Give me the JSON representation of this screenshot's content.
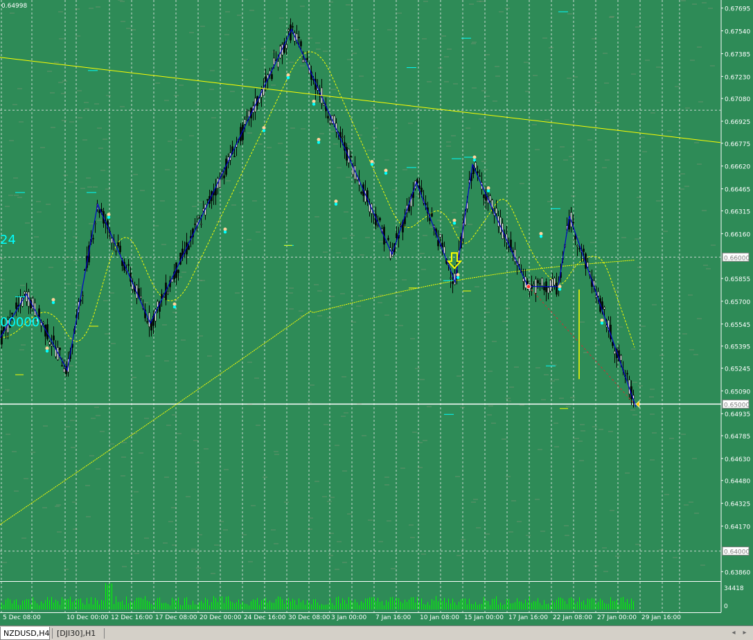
{
  "chart_data": {
    "type": "candlestick",
    "symbol": "NZDUSD",
    "timeframe": "H4",
    "title": "",
    "price_axis": {
      "range": [
        0.638,
        0.6775
      ],
      "ticks": [
        "0.67695",
        "0.67540",
        "0.67385",
        "0.67230",
        "0.67080",
        "0.66925",
        "0.66775",
        "0.66620",
        "0.66465",
        "0.66315",
        "0.66160",
        "0.66000",
        "0.65855",
        "0.65700",
        "0.65545",
        "0.65395",
        "0.65245",
        "0.65090",
        "0.65000",
        "0.64935",
        "0.64785",
        "0.64630",
        "0.64480",
        "0.64325",
        "0.64170",
        "0.64000",
        "0.63860"
      ],
      "boxed_levels": [
        "0.67000",
        "0.66000",
        "0.65000",
        "0.64000"
      ],
      "corner_label": "0.64998"
    },
    "time_axis_labels": [
      "5 Dec 08:00",
      "10 Dec 00:00",
      "12 Dec 16:00",
      "17 Dec 08:00",
      "20 Dec 00:00",
      "24 Dec 16:00",
      "30 Dec 08:00",
      "3 Jan 00:00",
      "7 Jan 16:00",
      "10 Jan 08:00",
      "15 Jan 00:00",
      "17 Jan 16:00",
      "22 Jan 08:00",
      "27 Jan 00:00",
      "29 Jan 16:00"
    ],
    "zigzag_points": [
      {
        "t": 0,
        "p": 0.6545
      },
      {
        "t": 38,
        "p": 0.6575
      },
      {
        "t": 97,
        "p": 0.6523
      },
      {
        "t": 141,
        "p": 0.6636
      },
      {
        "t": 217,
        "p": 0.6555
      },
      {
        "t": 421,
        "p": 0.6755
      },
      {
        "t": 566,
        "p": 0.6602
      },
      {
        "t": 601,
        "p": 0.6651
      },
      {
        "t": 657,
        "p": 0.6583
      },
      {
        "t": 682,
        "p": 0.6663
      },
      {
        "t": 762,
        "p": 0.658
      },
      {
        "t": 806,
        "p": 0.658
      },
      {
        "t": 822,
        "p": 0.6628
      },
      {
        "t": 918,
        "p": 0.6498
      }
    ],
    "trendline": {
      "start_price": 0.6736,
      "end_price": 0.6678
    },
    "volume_max_label": "34418",
    "volume_min_label": "0",
    "left_labels": [
      "24",
      "00000"
    ],
    "grid": true
  },
  "tabs": {
    "active": "NZDUSD,H4",
    "inactive": "[DJI30],H1"
  },
  "nav": {
    "left": "◂",
    "right": "▸"
  },
  "colors": {
    "background": "#2e8b57",
    "bull_candle": "#000000",
    "bear_candle": "#000000",
    "zigzag": "#0000cd",
    "trendline": "#ffff00",
    "ma_fast": "#ffff00",
    "ma_slow": "#ffff00",
    "grid": "#e6e6e6",
    "level_line": "#ffffff",
    "cyan_marks": "#00ffff"
  }
}
